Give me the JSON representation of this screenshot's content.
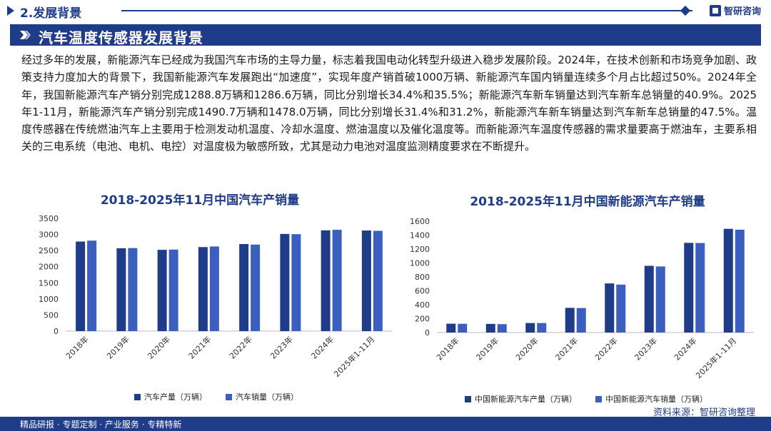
{
  "header": {
    "section": "2.发展背景",
    "brand": "智研咨询"
  },
  "banner": {
    "title": "汽车温度传感器发展背景"
  },
  "paragraph": "经过多年的发展，新能源汽车已经成为我国汽车市场的主导力量，标志着我国电动化转型升级进入稳步发展阶段。2024年，在技术创新和市场竞争加剧、政策支持力度加大的背景下，我国新能源汽车发展跑出“加速度”，实现年度产销首破1000万辆、新能源汽车国内销量连续多个月占比超过50%。2024年全年，我国新能源汽车产销分别完成1288.8万辆和1286.6万辆，同比分别增长34.4%和35.5%；新能源汽车新车销量达到汽车新车总销量的40.9%。2025年1-11月，新能源汽车产销分别完成1490.7万辆和1478.0万辆，同比分别增长31.4%和31.2%，新能源汽车新车销量达到汽车新车总销量的47.5%。温度传感器在传统燃油汽车上主要用于检测发动机温度、冷却水温度、燃油温度以及催化温度等。而新能源汽车温度传感器的需求量要高于燃油车，主要系相关的三电系统（电池、电机、电控）对温度极为敏感所致，尤其是动力电池对温度监测精度要求在不断提升。",
  "footer": {
    "tags": "精品研报 · 专题定制 · 产业服务 · 专精特新",
    "source": "资料来源：智研咨询整理"
  },
  "colors": {
    "primary": "#1f3c88",
    "series_dark": "#1f3c88",
    "series_light": "#3a5fbe"
  },
  "chart_data": [
    {
      "type": "bar",
      "title": "2018-2025年11月中国汽车产销量",
      "categories": [
        "2018年",
        "2019年",
        "2020年",
        "2021年",
        "2022年",
        "2023年",
        "2024年",
        "2025年1-11月"
      ],
      "ylim": [
        0,
        3500
      ],
      "yticks": [
        0,
        500,
        1000,
        1500,
        2000,
        2500,
        3000,
        3500
      ],
      "grid": false,
      "legend": "bottom",
      "series": [
        {
          "name": "汽车产量（万辆）",
          "color": "#1f3c88",
          "values": [
            2780,
            2572,
            2523,
            2608,
            2702,
            3016,
            3128,
            3123
          ]
        },
        {
          "name": "汽车销量（万辆）",
          "color": "#3a5fbe",
          "values": [
            2808,
            2577,
            2531,
            2627,
            2686,
            3009,
            3144,
            3113
          ]
        }
      ]
    },
    {
      "type": "bar",
      "title": "2018-2025年11月中国新能源汽车产销量",
      "categories": [
        "2018年",
        "2019年",
        "2020年",
        "2021年",
        "2022年",
        "2023年",
        "2024年",
        "2025年1-11月"
      ],
      "ylim": [
        0,
        1600
      ],
      "yticks": [
        0,
        200,
        400,
        600,
        800,
        1000,
        1200,
        1400,
        1600
      ],
      "grid": false,
      "legend": "bottom",
      "series": [
        {
          "name": "中国新能源汽车产量（万辆）",
          "color": "#1f3c88",
          "values": [
            127,
            124.2,
            136.6,
            354.5,
            705.8,
            958.7,
            1288.8,
            1490.7
          ]
        },
        {
          "name": "中国新能源汽车销量（万辆）",
          "color": "#3a5fbe",
          "values": [
            125.6,
            120.6,
            136.7,
            352.1,
            688.7,
            949.5,
            1286.6,
            1478.0
          ]
        }
      ]
    }
  ]
}
